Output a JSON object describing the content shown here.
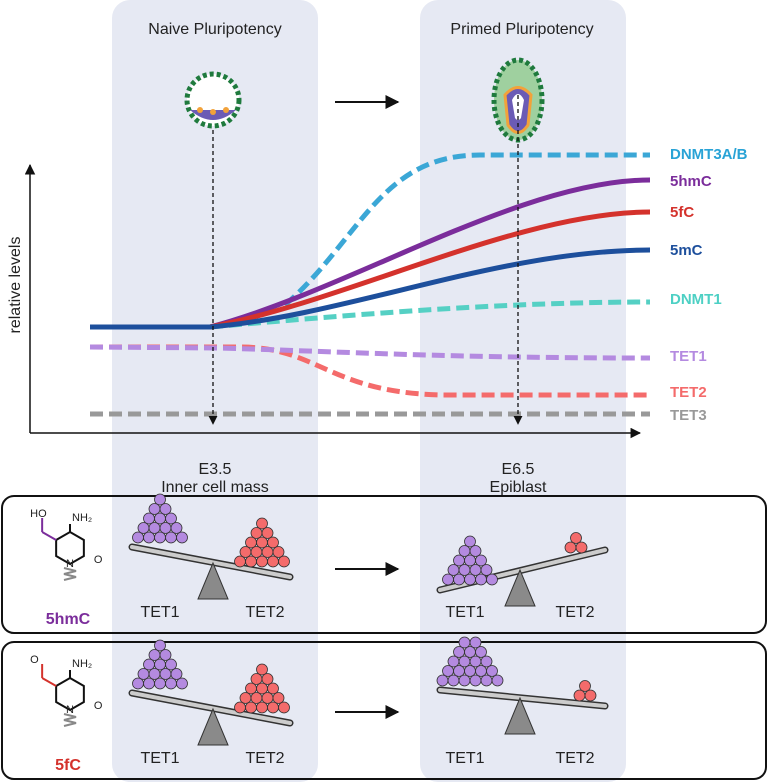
{
  "header": {
    "stages": [
      "Naive Pluripotency",
      "Primed Pluripotency"
    ]
  },
  "plot": {
    "y_label": "relative levels",
    "curves": [
      "DNMT3A/B",
      "5hmC",
      "5fC",
      "5mC",
      "DNMT1",
      "TET1",
      "TET2",
      "TET3"
    ],
    "timepoints": [
      {
        "stage": "E3.5",
        "tissue": "Inner cell mass"
      },
      {
        "stage": "E6.5",
        "tissue": "Epiblast"
      }
    ]
  },
  "panels": [
    {
      "modification": "5hmC",
      "group": "HO",
      "amine": "NH₂",
      "ring_n": "N",
      "carbonyl": "O",
      "left": [
        "TET1",
        "TET2"
      ],
      "right": [
        "TET1",
        "TET2"
      ]
    },
    {
      "modification": "5fC",
      "group": "O",
      "amine": "NH₂",
      "ring_n": "N",
      "carbonyl": "O",
      "left": [
        "TET1",
        "TET2"
      ],
      "right": [
        "TET1",
        "TET2"
      ]
    }
  ]
}
